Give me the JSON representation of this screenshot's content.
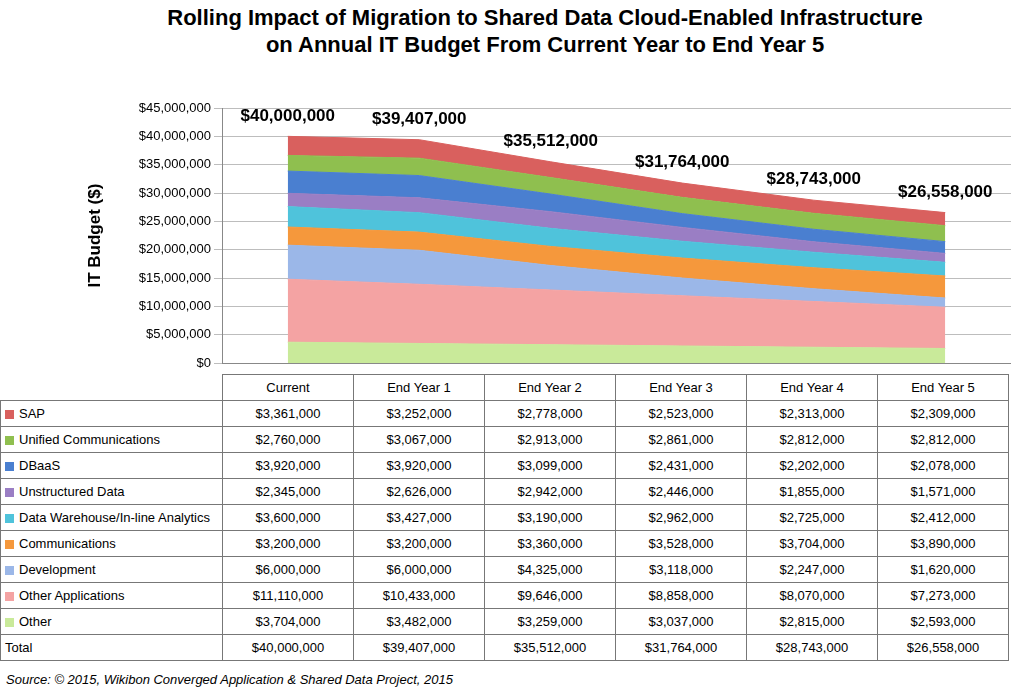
{
  "chart_data": {
    "type": "area",
    "title": "Rolling Impact of Migration to Shared Data Cloud-Enabled Infrastructure on Annual IT Budget From Current Year to End Year 5",
    "y_label": "IT Budget ($)",
    "source": "Source: © 2015, Wikibon Converged Application & Shared Data Project, 2015",
    "categories": [
      "Current",
      "End Year 1",
      "End Year 2",
      "End Year 3",
      "End Year 4",
      "End Year 5"
    ],
    "stacked": true,
    "grid": true,
    "ylim": [
      0,
      45000000
    ],
    "yticks": [
      {
        "value": 0,
        "label": "$0"
      },
      {
        "value": 5000000,
        "label": "$5,000,000"
      },
      {
        "value": 10000000,
        "label": "$10,000,000"
      },
      {
        "value": 15000000,
        "label": "$15,000,000"
      },
      {
        "value": 20000000,
        "label": "$20,000,000"
      },
      {
        "value": 25000000,
        "label": "$25,000,000"
      },
      {
        "value": 30000000,
        "label": "$30,000,000"
      },
      {
        "value": 35000000,
        "label": "$35,000,000"
      },
      {
        "value": 40000000,
        "label": "$40,000,000"
      },
      {
        "value": 45000000,
        "label": "$45,000,000"
      }
    ],
    "series": [
      {
        "name": "SAP",
        "color": "#d9605e",
        "values": [
          3361000,
          3252000,
          2778000,
          2523000,
          2313000,
          2309000
        ],
        "value_labels": [
          "$3,361,000",
          "$3,252,000",
          "$2,778,000",
          "$2,523,000",
          "$2,313,000",
          "$2,309,000"
        ]
      },
      {
        "name": "Unified Communications",
        "color": "#8fbf4f",
        "values": [
          2760000,
          3067000,
          2913000,
          2861000,
          2812000,
          2812000
        ],
        "value_labels": [
          "$2,760,000",
          "$3,067,000",
          "$2,913,000",
          "$2,861,000",
          "$2,812,000",
          "$2,812,000"
        ]
      },
      {
        "name": "DBaaS",
        "color": "#4a7fd0",
        "values": [
          3920000,
          3920000,
          3099000,
          2431000,
          2202000,
          2078000
        ],
        "value_labels": [
          "$3,920,000",
          "$3,920,000",
          "$3,099,000",
          "$2,431,000",
          "$2,202,000",
          "$2,078,000"
        ]
      },
      {
        "name": "Unstructured Data",
        "color": "#9a7ec4",
        "values": [
          2345000,
          2626000,
          2942000,
          2446000,
          1855000,
          1571000
        ],
        "value_labels": [
          "$2,345,000",
          "$2,626,000",
          "$2,942,000",
          "$2,446,000",
          "$1,855,000",
          "$1,571,000"
        ]
      },
      {
        "name": "Data Warehouse/In-line Analytics",
        "color": "#4fc3db",
        "values": [
          3600000,
          3427000,
          3190000,
          2962000,
          2725000,
          2412000
        ],
        "value_labels": [
          "$3,600,000",
          "$3,427,000",
          "$3,190,000",
          "$2,962,000",
          "$2,725,000",
          "$2,412,000"
        ]
      },
      {
        "name": "Communications",
        "color": "#f5983c",
        "values": [
          3200000,
          3200000,
          3360000,
          3528000,
          3704000,
          3890000
        ],
        "value_labels": [
          "$3,200,000",
          "$3,200,000",
          "$3,360,000",
          "$3,528,000",
          "$3,704,000",
          "$3,890,000"
        ]
      },
      {
        "name": "Development",
        "color": "#9bb7e8",
        "values": [
          6000000,
          6000000,
          4325000,
          3118000,
          2247000,
          1620000
        ],
        "value_labels": [
          "$6,000,000",
          "$6,000,000",
          "$4,325,000",
          "$3,118,000",
          "$2,247,000",
          "$1,620,000"
        ]
      },
      {
        "name": "Other Applications",
        "color": "#f4a3a3",
        "values": [
          11110000,
          10433000,
          9646000,
          8858000,
          8070000,
          7273000
        ],
        "value_labels": [
          "$11,110,000",
          "$10,433,000",
          "$9,646,000",
          "$8,858,000",
          "$8,070,000",
          "$7,273,000"
        ]
      },
      {
        "name": "Other",
        "color": "#c9ea9a",
        "values": [
          3704000,
          3482000,
          3259000,
          3037000,
          2815000,
          2593000
        ],
        "value_labels": [
          "$3,704,000",
          "$3,482,000",
          "$3,259,000",
          "$3,037,000",
          "$2,815,000",
          "$2,593,000"
        ]
      }
    ],
    "totals": {
      "name": "Total",
      "values": [
        40000000,
        39407000,
        35512000,
        31764000,
        28743000,
        26558000
      ],
      "value_labels": [
        "$40,000,000",
        "$39,407,000",
        "$35,512,000",
        "$31,764,000",
        "$28,743,000",
        "$26,558,000"
      ]
    }
  }
}
